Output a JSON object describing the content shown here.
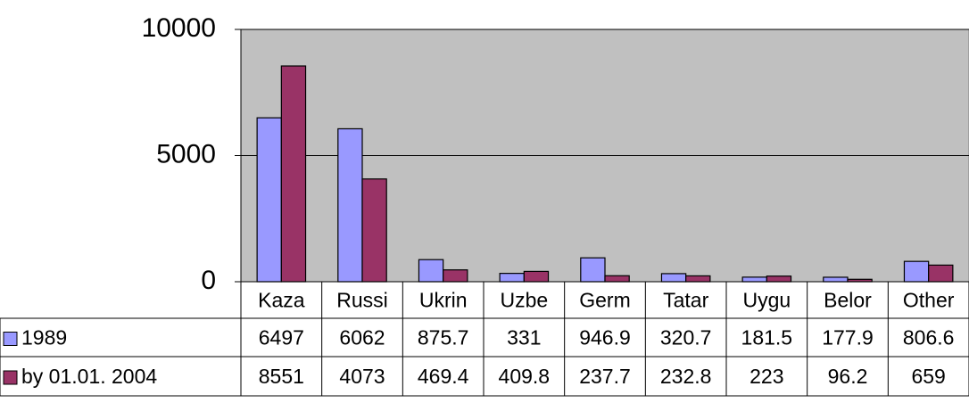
{
  "chart_data": {
    "type": "bar",
    "categories": [
      "Kaza",
      "Russi",
      "Ukrin",
      "Uzbe",
      "Germ",
      "Tatar",
      "Uygu",
      "Belor",
      "Other"
    ],
    "series": [
      {
        "name": "1989",
        "color": "#9999ff",
        "values": [
          6497,
          6062,
          875.7,
          331,
          946.9,
          320.7,
          181.5,
          177.9,
          806.6
        ]
      },
      {
        "name": "by 01.01. 2004",
        "color": "#993366",
        "values": [
          8551,
          4073,
          469.4,
          409.8,
          237.7,
          232.8,
          223,
          96.2,
          659
        ]
      }
    ],
    "ylim": [
      0,
      10000
    ],
    "yticks": [
      0,
      5000,
      10000
    ],
    "grid": true,
    "data_table": true
  }
}
